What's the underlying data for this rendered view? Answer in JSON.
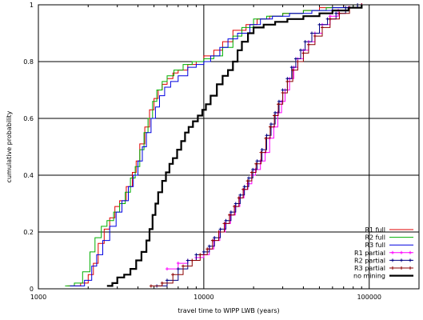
{
  "chart_data": {
    "type": "line",
    "title": "",
    "xlabel": "travel time to WIPP LWB (years)",
    "ylabel": "cumulative probability",
    "x_scale": "log",
    "xlim": [
      1000,
      200000
    ],
    "ylim": [
      0,
      1
    ],
    "x_ticks": [
      {
        "value": 1000,
        "label": "1000"
      },
      {
        "value": 10000,
        "label": "10000"
      },
      {
        "value": 100000,
        "label": "100000"
      }
    ],
    "y_ticks": [
      {
        "value": 0,
        "label": "0"
      },
      {
        "value": 0.2,
        "label": "0.2"
      },
      {
        "value": 0.4,
        "label": "0.4"
      },
      {
        "value": 0.6,
        "label": "0.6"
      },
      {
        "value": 0.8,
        "label": "0.8"
      },
      {
        "value": 1,
        "label": "1"
      }
    ],
    "grid": true,
    "legend_position": "bottom-right",
    "series": [
      {
        "name": "R1 full",
        "color": "#e00000",
        "line_width": 1,
        "marker": "none",
        "points": [
          [
            1500,
            0.01
          ],
          [
            1800,
            0.02
          ],
          [
            2000,
            0.05
          ],
          [
            2150,
            0.09
          ],
          [
            2300,
            0.16
          ],
          [
            2500,
            0.21
          ],
          [
            2700,
            0.25
          ],
          [
            2900,
            0.29
          ],
          [
            3100,
            0.31
          ],
          [
            3400,
            0.36
          ],
          [
            3700,
            0.41
          ],
          [
            3900,
            0.45
          ],
          [
            4100,
            0.51
          ],
          [
            4400,
            0.57
          ],
          [
            4700,
            0.63
          ],
          [
            5000,
            0.67
          ],
          [
            5300,
            0.7
          ],
          [
            5600,
            0.72
          ],
          [
            6000,
            0.74
          ],
          [
            6500,
            0.76
          ],
          [
            7000,
            0.77
          ],
          [
            8000,
            0.79
          ],
          [
            9000,
            0.8
          ],
          [
            10000,
            0.82
          ],
          [
            11500,
            0.84
          ],
          [
            13000,
            0.87
          ],
          [
            15000,
            0.91
          ],
          [
            18000,
            0.93
          ],
          [
            21000,
            0.95
          ],
          [
            25000,
            0.96
          ],
          [
            30000,
            0.97
          ],
          [
            40000,
            0.98
          ],
          [
            50000,
            0.99
          ],
          [
            70000,
            1.0
          ]
        ]
      },
      {
        "name": "R2 full",
        "color": "#00b000",
        "line_width": 1,
        "marker": "none",
        "points": [
          [
            1450,
            0.01
          ],
          [
            1650,
            0.02
          ],
          [
            1850,
            0.06
          ],
          [
            2050,
            0.13
          ],
          [
            2200,
            0.18
          ],
          [
            2400,
            0.22
          ],
          [
            2600,
            0.24
          ],
          [
            2850,
            0.27
          ],
          [
            3100,
            0.3
          ],
          [
            3350,
            0.34
          ],
          [
            3600,
            0.39
          ],
          [
            3850,
            0.43
          ],
          [
            4100,
            0.49
          ],
          [
            4350,
            0.55
          ],
          [
            4600,
            0.6
          ],
          [
            4900,
            0.66
          ],
          [
            5200,
            0.7
          ],
          [
            5600,
            0.73
          ],
          [
            6000,
            0.75
          ],
          [
            6600,
            0.77
          ],
          [
            7500,
            0.79
          ],
          [
            8500,
            0.8
          ],
          [
            10000,
            0.81
          ],
          [
            11500,
            0.82
          ],
          [
            13000,
            0.85
          ],
          [
            15000,
            0.89
          ],
          [
            17000,
            0.92
          ],
          [
            20000,
            0.95
          ],
          [
            24000,
            0.96
          ],
          [
            30000,
            0.97
          ],
          [
            40000,
            0.98
          ],
          [
            55000,
            0.99
          ],
          [
            80000,
            1.0
          ]
        ]
      },
      {
        "name": "R3 full",
        "color": "#0000e0",
        "line_width": 1,
        "marker": "none",
        "points": [
          [
            1550,
            0.01
          ],
          [
            1900,
            0.03
          ],
          [
            2100,
            0.08
          ],
          [
            2250,
            0.12
          ],
          [
            2450,
            0.17
          ],
          [
            2700,
            0.22
          ],
          [
            2950,
            0.27
          ],
          [
            3200,
            0.31
          ],
          [
            3500,
            0.36
          ],
          [
            3750,
            0.4
          ],
          [
            4000,
            0.45
          ],
          [
            4250,
            0.5
          ],
          [
            4500,
            0.55
          ],
          [
            4800,
            0.6
          ],
          [
            5100,
            0.64
          ],
          [
            5400,
            0.68
          ],
          [
            5800,
            0.71
          ],
          [
            6300,
            0.73
          ],
          [
            7000,
            0.75
          ],
          [
            8000,
            0.78
          ],
          [
            9000,
            0.79
          ],
          [
            10000,
            0.8
          ],
          [
            11000,
            0.82
          ],
          [
            12500,
            0.85
          ],
          [
            14000,
            0.88
          ],
          [
            16000,
            0.9
          ],
          [
            19000,
            0.93
          ],
          [
            22000,
            0.95
          ],
          [
            26000,
            0.96
          ],
          [
            33000,
            0.97
          ],
          [
            45000,
            0.98
          ],
          [
            60000,
            0.99
          ],
          [
            85000,
            1.0
          ]
        ]
      },
      {
        "name": "R1 partial",
        "color": "#ff00ff",
        "line_width": 1,
        "marker": "plus",
        "points": [
          [
            6000,
            0.07
          ],
          [
            7000,
            0.09
          ],
          [
            8000,
            0.1
          ],
          [
            9000,
            0.11
          ],
          [
            10000,
            0.12
          ],
          [
            10800,
            0.14
          ],
          [
            11500,
            0.17
          ],
          [
            12500,
            0.2
          ],
          [
            13500,
            0.23
          ],
          [
            14500,
            0.26
          ],
          [
            15500,
            0.29
          ],
          [
            16500,
            0.32
          ],
          [
            17500,
            0.35
          ],
          [
            18500,
            0.37
          ],
          [
            19500,
            0.4
          ],
          [
            20500,
            0.42
          ],
          [
            22000,
            0.45
          ],
          [
            23500,
            0.48
          ],
          [
            25000,
            0.53
          ],
          [
            26500,
            0.57
          ],
          [
            28000,
            0.62
          ],
          [
            29500,
            0.66
          ],
          [
            31000,
            0.7
          ],
          [
            33000,
            0.74
          ],
          [
            35000,
            0.78
          ],
          [
            37000,
            0.81
          ],
          [
            40000,
            0.84
          ],
          [
            43000,
            0.87
          ],
          [
            47000,
            0.9
          ],
          [
            52000,
            0.93
          ],
          [
            58000,
            0.96
          ],
          [
            65000,
            0.98
          ],
          [
            75000,
            0.99
          ],
          [
            90000,
            1.0
          ]
        ]
      },
      {
        "name": "R2 partial",
        "color": "#000080",
        "line_width": 1,
        "marker": "plus",
        "points": [
          [
            5200,
            0.01
          ],
          [
            6000,
            0.03
          ],
          [
            7000,
            0.07
          ],
          [
            8000,
            0.1
          ],
          [
            9000,
            0.12
          ],
          [
            10000,
            0.13
          ],
          [
            10800,
            0.15
          ],
          [
            11600,
            0.18
          ],
          [
            12600,
            0.21
          ],
          [
            13600,
            0.24
          ],
          [
            14600,
            0.27
          ],
          [
            15600,
            0.3
          ],
          [
            16600,
            0.33
          ],
          [
            17600,
            0.36
          ],
          [
            18700,
            0.39
          ],
          [
            19800,
            0.42
          ],
          [
            21000,
            0.45
          ],
          [
            22500,
            0.49
          ],
          [
            24000,
            0.54
          ],
          [
            25500,
            0.58
          ],
          [
            27000,
            0.62
          ],
          [
            28500,
            0.66
          ],
          [
            30000,
            0.7
          ],
          [
            32000,
            0.74
          ],
          [
            34000,
            0.78
          ],
          [
            36000,
            0.81
          ],
          [
            38500,
            0.84
          ],
          [
            41000,
            0.87
          ],
          [
            45000,
            0.9
          ],
          [
            50000,
            0.93
          ],
          [
            56000,
            0.95
          ],
          [
            63000,
            0.97
          ],
          [
            72000,
            0.99
          ],
          [
            85000,
            1.0
          ]
        ]
      },
      {
        "name": "R3 partial",
        "color": "#8b0000",
        "line_width": 1,
        "marker": "plus",
        "points": [
          [
            4800,
            0.01
          ],
          [
            5600,
            0.02
          ],
          [
            6500,
            0.05
          ],
          [
            7500,
            0.08
          ],
          [
            8500,
            0.1
          ],
          [
            9500,
            0.12
          ],
          [
            10500,
            0.14
          ],
          [
            11300,
            0.17
          ],
          [
            12300,
            0.2
          ],
          [
            13300,
            0.23
          ],
          [
            14300,
            0.26
          ],
          [
            15300,
            0.29
          ],
          [
            16300,
            0.32
          ],
          [
            17300,
            0.35
          ],
          [
            18400,
            0.38
          ],
          [
            19500,
            0.41
          ],
          [
            20700,
            0.44
          ],
          [
            22200,
            0.48
          ],
          [
            23700,
            0.53
          ],
          [
            25200,
            0.57
          ],
          [
            26700,
            0.61
          ],
          [
            28200,
            0.65
          ],
          [
            30000,
            0.69
          ],
          [
            32000,
            0.73
          ],
          [
            34500,
            0.77
          ],
          [
            37000,
            0.8
          ],
          [
            40000,
            0.83
          ],
          [
            43000,
            0.86
          ],
          [
            47000,
            0.89
          ],
          [
            52000,
            0.92
          ],
          [
            58000,
            0.95
          ],
          [
            66000,
            0.97
          ],
          [
            76000,
            0.99
          ],
          [
            90000,
            1.0
          ]
        ]
      },
      {
        "name": "no mining",
        "color": "#000000",
        "line_width": 2.2,
        "marker": "none",
        "points": [
          [
            2600,
            0.01
          ],
          [
            2800,
            0.02
          ],
          [
            3000,
            0.04
          ],
          [
            3300,
            0.05
          ],
          [
            3600,
            0.07
          ],
          [
            3900,
            0.1
          ],
          [
            4200,
            0.13
          ],
          [
            4500,
            0.17
          ],
          [
            4700,
            0.21
          ],
          [
            4900,
            0.26
          ],
          [
            5100,
            0.3
          ],
          [
            5300,
            0.34
          ],
          [
            5600,
            0.38
          ],
          [
            5900,
            0.41
          ],
          [
            6200,
            0.44
          ],
          [
            6500,
            0.46
          ],
          [
            6900,
            0.49
          ],
          [
            7300,
            0.52
          ],
          [
            7700,
            0.55
          ],
          [
            8100,
            0.57
          ],
          [
            8600,
            0.59
          ],
          [
            9200,
            0.61
          ],
          [
            9800,
            0.63
          ],
          [
            10300,
            0.65
          ],
          [
            11000,
            0.68
          ],
          [
            12000,
            0.72
          ],
          [
            13000,
            0.75
          ],
          [
            14000,
            0.77
          ],
          [
            15000,
            0.8
          ],
          [
            16000,
            0.84
          ],
          [
            17000,
            0.87
          ],
          [
            18500,
            0.9
          ],
          [
            20000,
            0.92
          ],
          [
            23000,
            0.93
          ],
          [
            27000,
            0.94
          ],
          [
            32000,
            0.95
          ],
          [
            40000,
            0.96
          ],
          [
            50000,
            0.97
          ],
          [
            60000,
            0.98
          ],
          [
            75000,
            0.99
          ],
          [
            90000,
            1.0
          ]
        ]
      }
    ]
  }
}
